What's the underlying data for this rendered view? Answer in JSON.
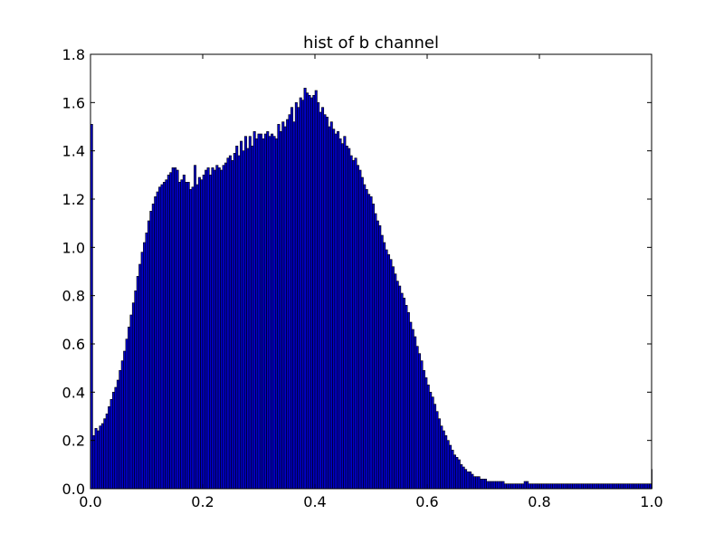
{
  "chart_data": {
    "type": "bar",
    "title": "hist of b channel",
    "xlabel": "",
    "ylabel": "",
    "xlim": [
      0.0,
      1.0
    ],
    "ylim": [
      0.0,
      1.8
    ],
    "grid": false,
    "bar_color": "#0000cc",
    "edge_color": "#000000",
    "x_ticks": [
      0.0,
      0.2,
      0.4,
      0.6,
      0.8,
      1.0
    ],
    "x_tick_labels": [
      "0.0",
      "0.2",
      "0.4",
      "0.6",
      "0.8",
      "1.0"
    ],
    "y_ticks": [
      0.0,
      0.2,
      0.4,
      0.6,
      0.8,
      1.0,
      1.2,
      1.4,
      1.6,
      1.8
    ],
    "y_tick_labels": [
      "0.0",
      "0.2",
      "0.4",
      "0.6",
      "0.8",
      "1.0",
      "1.2",
      "1.4",
      "1.6",
      "1.8"
    ],
    "bin_width": 0.003922,
    "values": [
      1.51,
      0.22,
      0.25,
      0.24,
      0.26,
      0.27,
      0.29,
      0.31,
      0.34,
      0.37,
      0.4,
      0.42,
      0.45,
      0.49,
      0.53,
      0.57,
      0.62,
      0.67,
      0.72,
      0.77,
      0.82,
      0.88,
      0.93,
      0.98,
      1.02,
      1.06,
      1.11,
      1.15,
      1.18,
      1.21,
      1.23,
      1.25,
      1.26,
      1.27,
      1.28,
      1.3,
      1.31,
      1.33,
      1.33,
      1.32,
      1.27,
      1.28,
      1.3,
      1.27,
      1.27,
      1.24,
      1.25,
      1.34,
      1.26,
      1.29,
      1.28,
      1.3,
      1.32,
      1.33,
      1.3,
      1.33,
      1.32,
      1.34,
      1.33,
      1.32,
      1.34,
      1.35,
      1.37,
      1.38,
      1.36,
      1.39,
      1.42,
      1.38,
      1.44,
      1.4,
      1.46,
      1.41,
      1.46,
      1.42,
      1.48,
      1.45,
      1.47,
      1.47,
      1.45,
      1.47,
      1.48,
      1.46,
      1.47,
      1.46,
      1.45,
      1.51,
      1.48,
      1.52,
      1.5,
      1.53,
      1.55,
      1.58,
      1.52,
      1.6,
      1.58,
      1.62,
      1.61,
      1.66,
      1.64,
      1.63,
      1.62,
      1.63,
      1.65,
      1.6,
      1.56,
      1.58,
      1.55,
      1.54,
      1.5,
      1.52,
      1.49,
      1.47,
      1.48,
      1.45,
      1.43,
      1.46,
      1.42,
      1.41,
      1.38,
      1.36,
      1.37,
      1.34,
      1.32,
      1.29,
      1.26,
      1.24,
      1.22,
      1.21,
      1.18,
      1.14,
      1.11,
      1.09,
      1.05,
      1.02,
      0.99,
      0.97,
      0.95,
      0.92,
      0.89,
      0.86,
      0.84,
      0.81,
      0.79,
      0.76,
      0.73,
      0.69,
      0.66,
      0.63,
      0.59,
      0.56,
      0.53,
      0.49,
      0.46,
      0.43,
      0.4,
      0.38,
      0.35,
      0.32,
      0.29,
      0.26,
      0.24,
      0.22,
      0.2,
      0.18,
      0.16,
      0.14,
      0.13,
      0.12,
      0.1,
      0.09,
      0.08,
      0.07,
      0.07,
      0.06,
      0.05,
      0.05,
      0.05,
      0.04,
      0.04,
      0.04,
      0.03,
      0.03,
      0.03,
      0.03,
      0.03,
      0.03,
      0.03,
      0.03,
      0.02,
      0.02,
      0.02,
      0.02,
      0.02,
      0.02,
      0.02,
      0.02,
      0.02,
      0.03,
      0.03,
      0.02,
      0.02,
      0.02,
      0.02,
      0.02,
      0.02,
      0.02,
      0.02,
      0.02,
      0.02,
      0.02,
      0.02,
      0.02,
      0.02,
      0.02,
      0.02,
      0.02,
      0.02,
      0.02,
      0.02,
      0.02,
      0.02,
      0.02,
      0.02,
      0.02,
      0.02,
      0.02,
      0.02,
      0.02,
      0.02,
      0.02,
      0.02,
      0.02,
      0.02,
      0.02,
      0.02,
      0.02,
      0.02,
      0.02,
      0.02,
      0.02,
      0.02,
      0.02,
      0.02,
      0.02,
      0.02,
      0.02,
      0.02,
      0.02,
      0.02,
      0.02,
      0.02,
      0.02,
      0.02,
      0.02,
      0.02,
      0.08
    ]
  }
}
